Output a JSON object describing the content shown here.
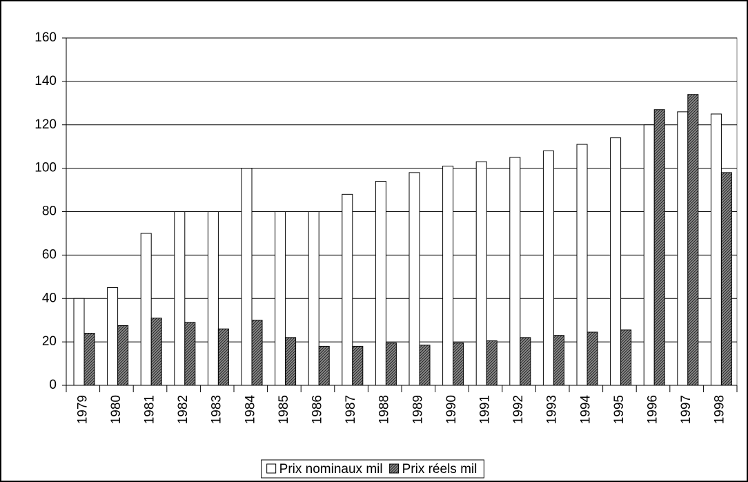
{
  "chart_data": {
    "type": "bar",
    "categories": [
      "1979",
      "1980",
      "1981",
      "1982",
      "1983",
      "1984",
      "1985",
      "1986",
      "1987",
      "1988",
      "1989",
      "1990",
      "1991",
      "1992",
      "1993",
      "1994",
      "1995",
      "1996",
      "1997",
      "1998"
    ],
    "series": [
      {
        "name": "Prix nominaux mil",
        "color": "#ffffff",
        "values": [
          40,
          45,
          70,
          80,
          80,
          100,
          80,
          80,
          88,
          94,
          98,
          101,
          103,
          105,
          108,
          111,
          114,
          120,
          126,
          125
        ]
      },
      {
        "name": "Prix réels mil",
        "color": "#8c8c8c",
        "values": [
          24,
          27.5,
          31,
          29,
          26,
          30,
          22,
          18,
          18,
          19.5,
          18.5,
          19.5,
          20.5,
          22,
          23,
          24.5,
          25.5,
          127,
          134,
          98
        ]
      }
    ],
    "ylim": [
      0,
      160
    ],
    "yticks": [
      0,
      20,
      40,
      60,
      80,
      100,
      120,
      140,
      160
    ],
    "grid": true,
    "legend": "bottom"
  }
}
